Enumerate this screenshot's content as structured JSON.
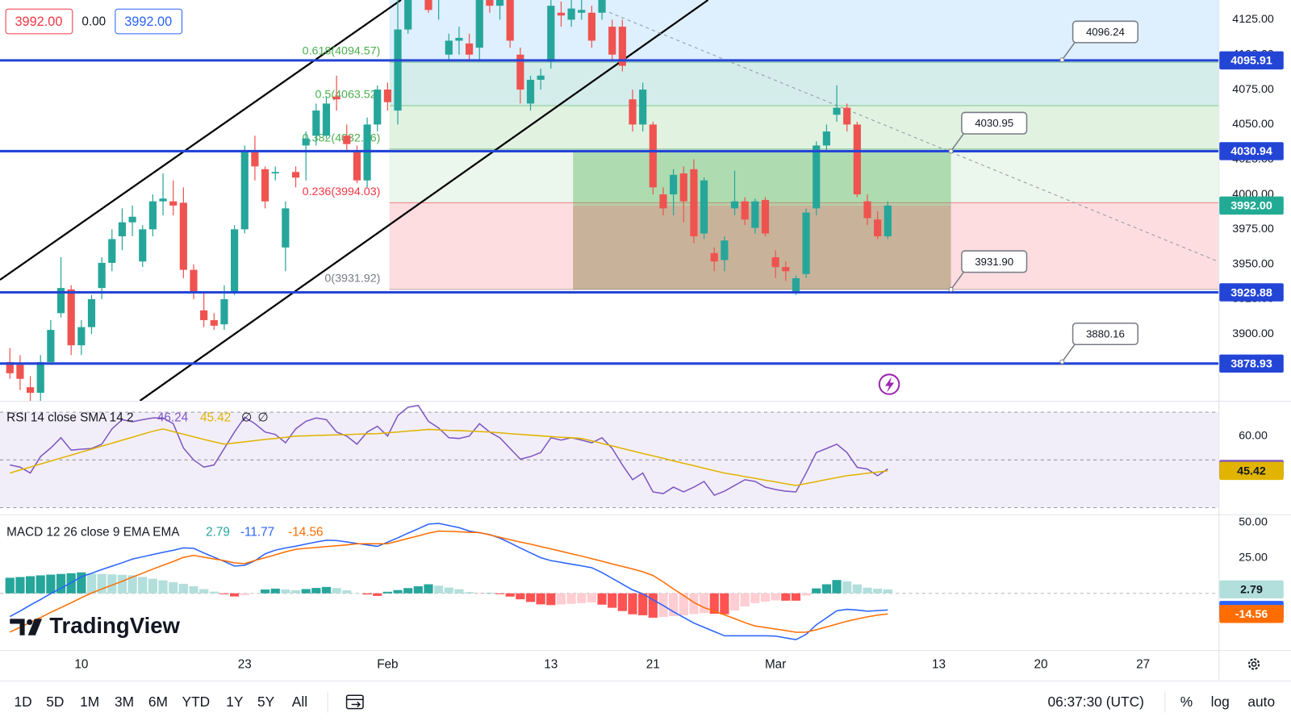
{
  "quote_bar": {
    "bid": "3992.00",
    "change": "0.00",
    "ask": "3992.00"
  },
  "chart_data": [
    {
      "type": "candlestick",
      "up_color": "#26a69a",
      "down_color": "#ef5350",
      "ohlc": [
        [
          3880,
          3890,
          3868,
          3872
        ],
        [
          3878,
          3885,
          3860,
          3868
        ],
        [
          3862,
          3870,
          3850,
          3858
        ],
        [
          3858,
          3885,
          3850,
          3880
        ],
        [
          3880,
          3910,
          3878,
          3903
        ],
        [
          3915,
          3955,
          3912,
          3933
        ],
        [
          3932,
          3935,
          3885,
          3892
        ],
        [
          3892,
          3910,
          3885,
          3905
        ],
        [
          3905,
          3928,
          3900,
          3925
        ],
        [
          3933,
          3955,
          3925,
          3951
        ],
        [
          3951,
          3975,
          3945,
          3968
        ],
        [
          3970,
          3990,
          3960,
          3980
        ],
        [
          3980,
          3992,
          3970,
          3984
        ],
        [
          3952,
          3978,
          3948,
          3975
        ],
        [
          3975,
          4000,
          3970,
          3995
        ],
        [
          3995,
          4015,
          3985,
          3997
        ],
        [
          3995,
          4010,
          3985,
          3992
        ],
        [
          3994,
          4005,
          3940,
          3946
        ],
        [
          3946,
          3950,
          3925,
          3930
        ],
        [
          3917,
          3930,
          3905,
          3910
        ],
        [
          3910,
          3915,
          3903,
          3906
        ],
        [
          3907,
          3935,
          3903,
          3925
        ],
        [
          3930,
          3978,
          3928,
          3975
        ],
        [
          3975,
          4035,
          3972,
          4030
        ],
        [
          4030,
          4042,
          4010,
          4020
        ],
        [
          4018,
          4020,
          3990,
          3995
        ],
        [
          4015,
          4020,
          4010,
          4016
        ],
        [
          3962,
          3995,
          3945,
          3990
        ],
        [
          4016,
          4020,
          4005,
          4012
        ],
        [
          4035,
          4045,
          4010,
          4040
        ],
        [
          4042,
          4065,
          4035,
          4060
        ],
        [
          4042,
          4070,
          4040,
          4065
        ],
        [
          4070,
          4085,
          4060,
          4068
        ],
        [
          4042,
          4050,
          4030,
          4036
        ],
        [
          4030,
          4035,
          4008,
          4010
        ],
        [
          4010,
          4055,
          4005,
          4050
        ],
        [
          4050,
          4078,
          4045,
          4075
        ],
        [
          4075,
          4080,
          4060,
          4066
        ],
        [
          4060,
          4140,
          4050,
          4118
        ],
        [
          4118,
          4170,
          4115,
          4160
        ],
        [
          4160,
          4180,
          4145,
          4170
        ],
        [
          4145,
          4160,
          4130,
          4132
        ],
        [
          4140,
          4150,
          4125,
          4145
        ],
        [
          4100,
          4115,
          4095,
          4110
        ],
        [
          4110,
          4120,
          4100,
          4112
        ],
        [
          4108,
          4115,
          4095,
          4100
        ],
        [
          4105,
          4160,
          4095,
          4145
        ],
        [
          4145,
          4155,
          4130,
          4135
        ],
        [
          4135,
          4150,
          4125,
          4140
        ],
        [
          4140,
          4145,
          4105,
          4110
        ],
        [
          4100,
          4105,
          4065,
          4075
        ],
        [
          4065,
          4085,
          4060,
          4082
        ],
        [
          4082,
          4090,
          4075,
          4085
        ],
        [
          4095,
          4140,
          4090,
          4135
        ],
        [
          4130,
          4138,
          4120,
          4128
        ],
        [
          4125,
          4140,
          4120,
          4133
        ],
        [
          4130,
          4140,
          4125,
          4132
        ],
        [
          4130,
          4135,
          4105,
          4110
        ],
        [
          4130,
          4145,
          4125,
          4140
        ],
        [
          4120,
          4125,
          4095,
          4100
        ],
        [
          4120,
          4125,
          4088,
          4092
        ],
        [
          4068,
          4075,
          4045,
          4050
        ],
        [
          4050,
          4080,
          4045,
          4075
        ],
        [
          4050,
          4052,
          4000,
          4005
        ],
        [
          4000,
          4005,
          3985,
          3990
        ],
        [
          4000,
          4018,
          3985,
          4014
        ],
        [
          4015,
          4020,
          3980,
          3995
        ],
        [
          4018,
          4025,
          3965,
          3970
        ],
        [
          3972,
          4012,
          3968,
          4010
        ],
        [
          3958,
          3962,
          3945,
          3952
        ],
        [
          3953,
          3970,
          3945,
          3967
        ],
        [
          3990,
          4017,
          3985,
          3995
        ],
        [
          3995,
          3998,
          3978,
          3982
        ],
        [
          3976,
          3997,
          3972,
          3995
        ],
        [
          3996,
          3998,
          3970,
          3972
        ],
        [
          3955,
          3960,
          3940,
          3948
        ],
        [
          3948,
          3952,
          3938,
          3945
        ],
        [
          3930,
          3942,
          3928,
          3940
        ],
        [
          3943,
          3990,
          3940,
          3987
        ],
        [
          3990,
          4038,
          3985,
          4035
        ],
        [
          4035,
          4050,
          4030,
          4045
        ],
        [
          4057,
          4078,
          4052,
          4062
        ],
        [
          4062,
          4065,
          4045,
          4050
        ],
        [
          4050,
          4052,
          3998,
          4000
        ],
        [
          3995,
          4000,
          3978,
          3983
        ],
        [
          3982,
          3988,
          3968,
          3970
        ],
        [
          3970,
          3995,
          3968,
          3992
        ]
      ],
      "xlim": [
        -0.97,
        118.4
      ],
      "xticks": [
        {
          "value": 7,
          "label": "10"
        },
        {
          "value": 23,
          "label": "23"
        },
        {
          "value": 37,
          "label": "Feb"
        },
        {
          "value": 53,
          "label": "13"
        },
        {
          "value": 63,
          "label": "21"
        },
        {
          "value": 75,
          "label": "Mar"
        },
        {
          "value": 91,
          "label": "13"
        },
        {
          "value": 101,
          "label": "20"
        },
        {
          "value": 111,
          "label": "27"
        }
      ],
      "ylim": [
        3852.3,
        4139.1
      ],
      "yticks": [
        {
          "value": 4125,
          "label": "4125.00"
        },
        {
          "value": 4100,
          "label": "4100.00"
        },
        {
          "value": 4075,
          "label": "4075.00"
        },
        {
          "value": 4050,
          "label": "4050.00"
        },
        {
          "value": 4025,
          "label": "4025.00"
        },
        {
          "value": 4000,
          "label": "4000.00"
        },
        {
          "value": 3975,
          "label": "3975.00"
        },
        {
          "value": 3950,
          "label": "3950.00"
        },
        {
          "value": 3925,
          "label": "3925.00"
        },
        {
          "value": 3900,
          "label": "3900.00"
        }
      ],
      "levels": [
        4095.91,
        4030.94,
        3929.88,
        3878.93
      ],
      "level_color": "#2345d6",
      "last_price": {
        "value": 3992,
        "label": "3992.00"
      },
      "last_price_color": "#22ab94",
      "fib_levels": [
        {
          "ratio": 0.618,
          "price": 4094.57,
          "label": "0.618(4094.57)",
          "color": "#4caf50"
        },
        {
          "ratio": 0.5,
          "price": 4063.52,
          "label": "0.5(4063.52)",
          "color": "#4caf50"
        },
        {
          "ratio": 0.382,
          "price": 4032.46,
          "label": "0.382(4032.46)",
          "color": "#4caf50"
        },
        {
          "ratio": 0.236,
          "price": 3994.03,
          "label": "0.236(3994.03)",
          "color": "#f23645"
        },
        {
          "ratio": 0,
          "price": 3931.92,
          "label": "0(3931.92)",
          "color": "#787b86"
        }
      ],
      "fib_zone_colors": [
        "rgba(33,150,243,0.15)",
        "rgba(0,150,136,0.17)",
        "rgba(76,175,80,0.17)",
        "rgba(76,175,80,0.11)",
        "rgba(242,54,69,0.17)"
      ],
      "callouts": [
        {
          "value": 4096.24,
          "label": "4096.24"
        },
        {
          "value": 4030.95,
          "label": "4030.95"
        },
        {
          "value": 3931.9,
          "label": "3931.90"
        },
        {
          "value": 3880.16,
          "label": "3880.16"
        }
      ]
    },
    {
      "type": "line",
      "title": "RSI 14 close SMA 14 2",
      "series": [
        {
          "color": "#7e57c2",
          "values": [
            47.9,
            47,
            44.5,
            51.4,
            55,
            59.3,
            54.1,
            54.5,
            54.8,
            56.6,
            63,
            66.9,
            66,
            66.9,
            67.6,
            67.6,
            65.2,
            55,
            50,
            47,
            47.9,
            54.8,
            61.7,
            67.9,
            65.2,
            61.7,
            60.7,
            57.2,
            63,
            66.2,
            67.6,
            66.9,
            61.7,
            60,
            56.6,
            61.7,
            64.1,
            60,
            68.6,
            72.1,
            72.8,
            66.2,
            63.4,
            59.3,
            59,
            60,
            65.2,
            61.7,
            59.3,
            54.8,
            50.3,
            51.4,
            53.1,
            59.3,
            58.3,
            59.3,
            58.3,
            57.2,
            59.3,
            54.8,
            47.9,
            41.7,
            44.5,
            36.6,
            35.9,
            38.6,
            36.6,
            38.6,
            41,
            35.2,
            36.9,
            39.3,
            41.7,
            41,
            38.6,
            37.6,
            36.9,
            36.6,
            44.5,
            53.1,
            54.8,
            56.6,
            53.1,
            46.9,
            46.2,
            43.4,
            46.24
          ]
        },
        {
          "color": "#e0b400",
          "values": [
            44.5,
            45.8,
            47,
            48.3,
            49.5,
            50.8,
            52,
            53.3,
            54.5,
            55.8,
            57,
            58.3,
            59.5,
            60.8,
            62,
            63,
            61.9,
            60.8,
            59.7,
            58.6,
            57.6,
            56.6,
            57.1,
            57.6,
            58.1,
            58.6,
            59,
            59.5,
            60,
            60.1,
            60.3,
            60.4,
            60.5,
            60.6,
            60.8,
            60.9,
            61,
            61.4,
            61.7,
            62.1,
            62.4,
            62.8,
            62.6,
            62.4,
            62.3,
            62.1,
            61.9,
            61.7,
            61.4,
            61,
            60.7,
            60.4,
            60.1,
            59.8,
            59.5,
            59.3,
            59,
            58,
            56.9,
            55.9,
            54.8,
            53.8,
            52.7,
            51.7,
            50.7,
            49.6,
            48.6,
            47.6,
            46.5,
            45.5,
            44.5,
            43.8,
            43,
            42.3,
            41.5,
            40.8,
            40,
            39.3,
            40.1,
            40.9,
            41.8,
            42.6,
            43.4,
            43.9,
            44.4,
            44.9,
            45.42
          ]
        }
      ],
      "na_labels": [
        "∅",
        "∅"
      ],
      "ylim": [
        27.2,
        74.8
      ],
      "yticks": [
        {
          "value": 60,
          "label": "60.00"
        }
      ],
      "bands": [
        70,
        50,
        30
      ],
      "band_fill": "rgba(126,87,194,0.1)"
    },
    {
      "type": "macd",
      "title": "MACD 12 26 close 9 EMA EMA",
      "histogram": {
        "values": [
          11,
          11.5,
          12.1,
          12.7,
          13.2,
          13.7,
          14.2,
          14.8,
          14,
          13.7,
          13.4,
          13.1,
          12.7,
          11.6,
          10.3,
          9.2,
          7.9,
          6.7,
          5,
          3,
          1.2,
          -0.6,
          -2.2,
          -1.2,
          -0.2,
          2.7,
          3.3,
          2.7,
          2.2,
          3,
          3.8,
          4.5,
          3.7,
          2.1,
          0.2,
          -0.8,
          -1.8,
          1.1,
          2.3,
          3.7,
          5,
          6.4,
          5.4,
          4.1,
          2.9,
          0.9,
          -0.1,
          0.2,
          -0.6,
          -2.3,
          -4.2,
          -6.1,
          -7.8,
          -8.3,
          -7.8,
          -7.4,
          -6.9,
          -6.4,
          -8,
          -10.2,
          -12.5,
          -14.8,
          -15.5,
          -17.2,
          -16.7,
          -16.1,
          -15.5,
          -14.6,
          -13.9,
          -14.4,
          -14.8,
          -12.1,
          -9.3,
          -6.9,
          -5.9,
          -5,
          -5.2,
          -5.2,
          -1.6,
          3.5,
          6.4,
          9.4,
          8.4,
          6.3,
          4,
          3.2,
          2.79
        ],
        "colors": [
          "#26a69a",
          "#b2dfdb",
          "#ff5252",
          "#ffcdd2"
        ]
      },
      "series": [
        {
          "color": "#2962ff",
          "values": [
            -16.4,
            -12.5,
            -8.3,
            -4.4,
            -0.2,
            3.6,
            7.5,
            11.7,
            14.2,
            16.8,
            19.2,
            21.6,
            24.2,
            25.8,
            27.4,
            29,
            30.4,
            32.1,
            31.8,
            28.5,
            25.5,
            22.5,
            19.3,
            19.8,
            23,
            27.9,
            30.5,
            32,
            33.3,
            34.8,
            36.2,
            37.5,
            37.3,
            36.3,
            35.2,
            34.2,
            33.2,
            36.1,
            39.2,
            42.5,
            45.6,
            48.9,
            49.4,
            47.9,
            46.4,
            44,
            42.8,
            41.5,
            39,
            35.6,
            32,
            28.6,
            25.2,
            23.1,
            21.9,
            20.6,
            19.4,
            18.1,
            14.7,
            10.6,
            6.5,
            2.4,
            -0.3,
            -4.6,
            -8.6,
            -13,
            -17,
            -21,
            -24,
            -27,
            -30,
            -30,
            -30,
            -30,
            -30,
            -30.2,
            -31.5,
            -32.7,
            -29,
            -22.2,
            -17.3,
            -12.3,
            -11.3,
            -11.8,
            -12.6,
            -12.2,
            -11.77
          ]
        },
        {
          "color": "#ff6d00",
          "values": [
            -27.4,
            -24,
            -20.4,
            -17.1,
            -13.4,
            -10.1,
            -6.7,
            -3.1,
            0.2,
            3.1,
            5.8,
            8.5,
            11.5,
            14.2,
            17.1,
            19.8,
            22.5,
            25.4,
            26.8,
            25.5,
            24.3,
            23.1,
            21.5,
            21,
            23.2,
            25.2,
            27.2,
            29.3,
            31.1,
            31.8,
            32.4,
            33,
            33.6,
            34.2,
            35,
            35,
            35,
            35,
            36.9,
            38.8,
            40.6,
            42.5,
            44,
            43.8,
            43.5,
            43.1,
            42.9,
            41.3,
            39.6,
            37.9,
            36.2,
            34.7,
            33,
            31.4,
            29.7,
            28,
            26.3,
            24.5,
            22.7,
            20.8,
            19,
            17.2,
            15.2,
            12.6,
            8.1,
            3.1,
            -1.5,
            -6.4,
            -10.1,
            -12.6,
            -15.2,
            -17.9,
            -20.7,
            -23.1,
            -24.1,
            -25.2,
            -26.3,
            -27.5,
            -27.4,
            -25.7,
            -23.7,
            -21.7,
            -19.7,
            -18.1,
            -16.6,
            -15.4,
            -14.56
          ]
        }
      ],
      "ylim": [
        -40.1,
        55.8
      ],
      "yticks": [
        {
          "value": 50,
          "label": "50.00"
        },
        {
          "value": 25,
          "label": "25.00"
        }
      ],
      "zero_line": 0
    }
  ],
  "logo": "TradingView",
  "toolbar": {
    "ranges": [
      "1D",
      "5D",
      "1M",
      "3M",
      "6M",
      "YTD",
      "1Y",
      "5Y",
      "All"
    ],
    "clock": "06:37:30 (UTC)",
    "options": [
      "%",
      "log",
      "auto"
    ]
  }
}
